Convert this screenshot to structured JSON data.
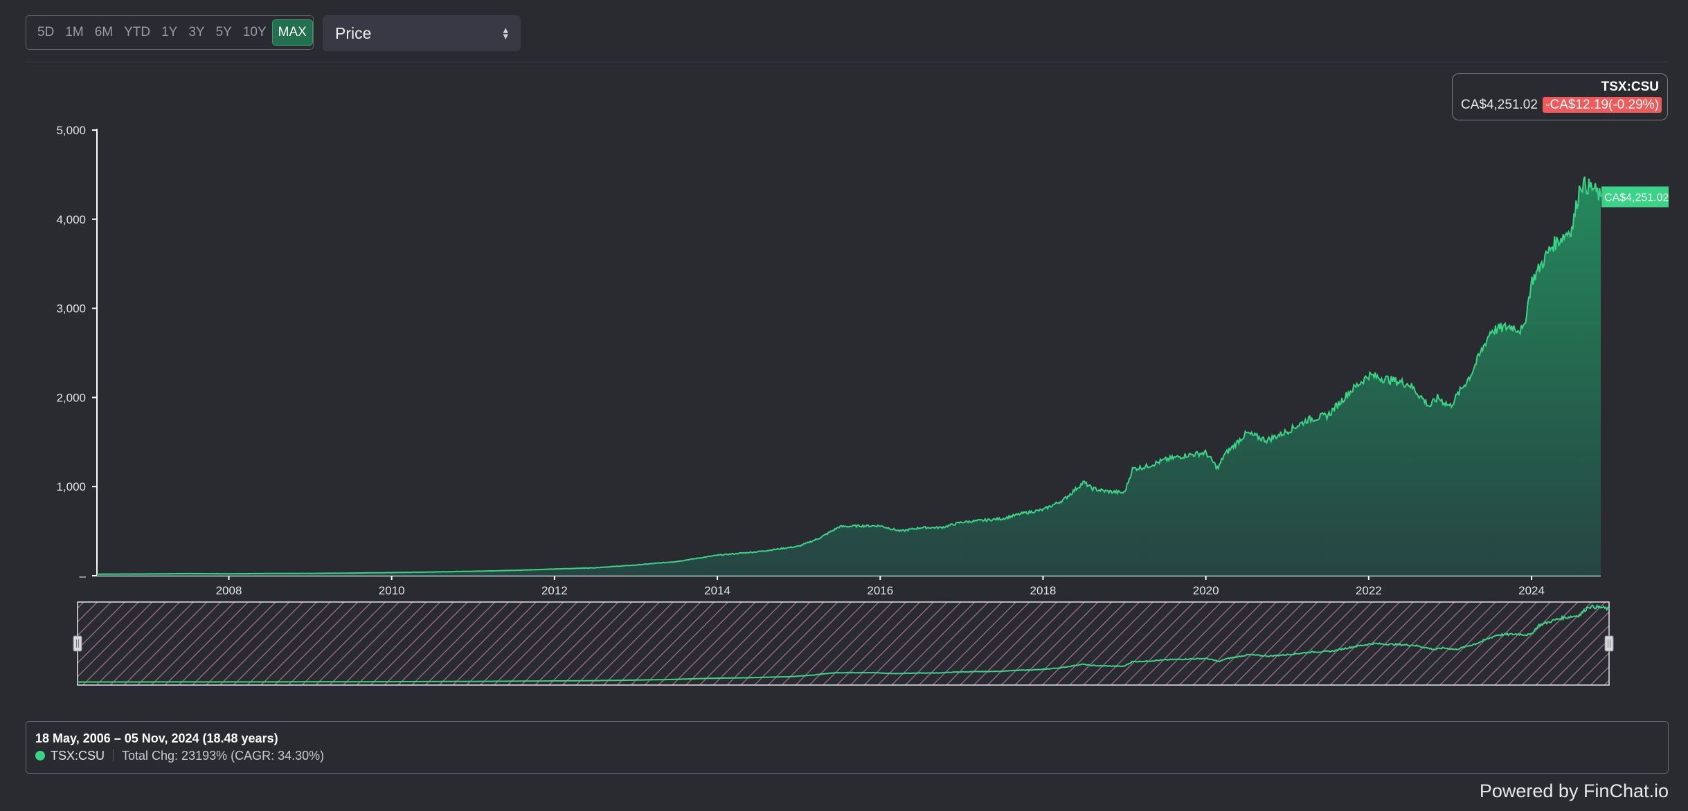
{
  "toolbar": {
    "ranges": [
      "5D",
      "1M",
      "6M",
      "YTD",
      "1Y",
      "3Y",
      "5Y",
      "10Y",
      "MAX"
    ],
    "active_range": "MAX",
    "metric_label": "Price"
  },
  "ticker_box": {
    "symbol": "TSX:CSU",
    "price": "CA$4,251.02",
    "change": "-CA$12.19(-0.29%)",
    "change_color": "#f05a5a"
  },
  "chart_data": {
    "type": "area",
    "x_tick_labels": [
      "2008",
      "2010",
      "2012",
      "2014",
      "2016",
      "2018",
      "2020",
      "2022",
      "2024"
    ],
    "y_tick_labels": [
      "5,000",
      "4,000",
      "3,000",
      "2,000",
      "1,000",
      "–"
    ],
    "y_ticks": [
      5000,
      4000,
      3000,
      2000,
      1000,
      0
    ],
    "ylim": [
      0,
      5000
    ],
    "xlim": [
      2006.38,
      2024.85
    ],
    "grid": false,
    "last_value_label": "CA$4,251.02",
    "line_color": "#3ad486",
    "series": [
      {
        "name": "TSX:CSU",
        "x": [
          2006.38,
          2007.0,
          2007.5,
          2008.0,
          2008.5,
          2009.0,
          2009.5,
          2010.0,
          2010.5,
          2011.0,
          2011.5,
          2012.0,
          2012.5,
          2013.0,
          2013.5,
          2014.0,
          2014.5,
          2015.0,
          2015.25,
          2015.5,
          2015.75,
          2016.0,
          2016.25,
          2016.5,
          2016.75,
          2017.0,
          2017.25,
          2017.5,
          2017.75,
          2018.0,
          2018.25,
          2018.5,
          2018.6,
          2018.75,
          2019.0,
          2019.1,
          2019.25,
          2019.5,
          2019.75,
          2020.0,
          2020.15,
          2020.22,
          2020.3,
          2020.5,
          2020.75,
          2021.0,
          2021.25,
          2021.5,
          2021.75,
          2022.0,
          2022.25,
          2022.5,
          2022.75,
          2022.85,
          2023.0,
          2023.25,
          2023.5,
          2023.75,
          2023.9,
          2024.0,
          2024.25,
          2024.5,
          2024.6,
          2024.75,
          2024.85
        ],
        "y": [
          18,
          20,
          24,
          22,
          25,
          26,
          30,
          35,
          42,
          50,
          60,
          75,
          90,
          120,
          160,
          230,
          270,
          330,
          420,
          550,
          560,
          560,
          500,
          540,
          540,
          600,
          620,
          640,
          700,
          740,
          850,
          1050,
          980,
          950,
          930,
          1200,
          1220,
          1300,
          1350,
          1380,
          1200,
          1350,
          1420,
          1600,
          1520,
          1620,
          1750,
          1800,
          2050,
          2250,
          2200,
          2150,
          1900,
          2000,
          1900,
          2250,
          2750,
          2800,
          2750,
          3300,
          3700,
          3900,
          4400,
          4350,
          4251
        ]
      }
    ]
  },
  "navigator": {
    "handle_color": "#d8d8dd"
  },
  "info": {
    "date_range": "18 May, 2006 – 05 Nov, 2024 (18.48 years)",
    "ticker": "TSX:CSU",
    "total_change": "Total Chg: 23193% (CAGR: 34.30%)"
  },
  "footer": {
    "powered_by": "Powered by FinChat.io"
  }
}
